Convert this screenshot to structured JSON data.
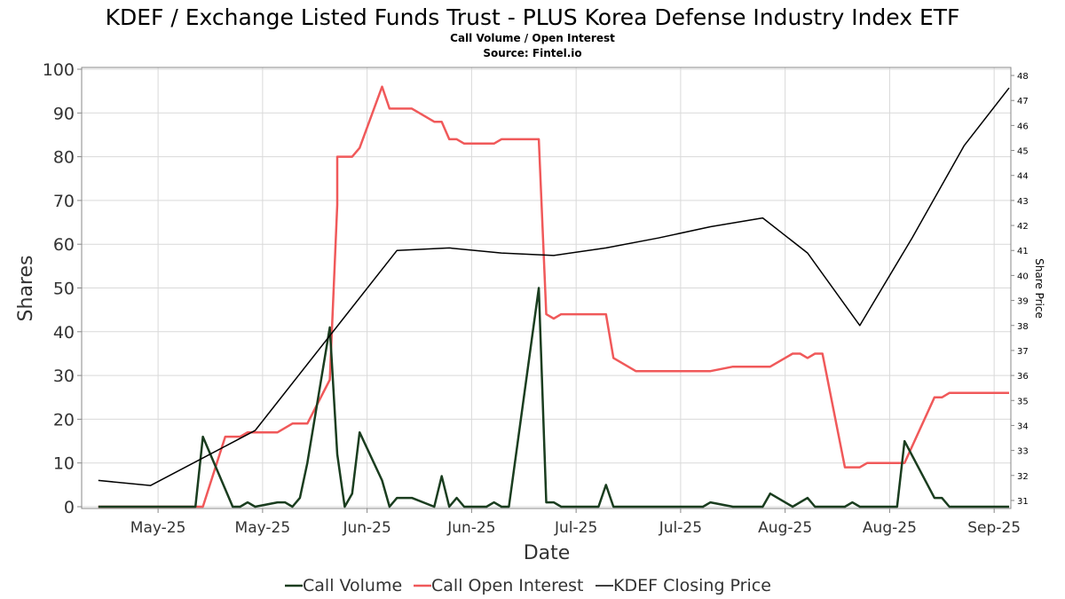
{
  "chart_data": {
    "type": "line",
    "title": "KDEF / Exchange Listed Funds Trust - PLUS Korea Defense Industry Index ETF",
    "subtitle_lines": [
      "Call Volume / Open Interest",
      "Source: Fintel.io"
    ],
    "xlabel": "Date",
    "ylabel": "Shares",
    "y2label": "Share Price",
    "ylim": [
      0,
      100
    ],
    "y_ticks": [
      0,
      10,
      20,
      30,
      40,
      50,
      60,
      70,
      80,
      90,
      100
    ],
    "y2lim": [
      30.75,
      48.25
    ],
    "y2_ticks": [
      31,
      32,
      33,
      34,
      35,
      36,
      37,
      38,
      39,
      40,
      41,
      42,
      43,
      44,
      45,
      46,
      47,
      48
    ],
    "xlim": [
      "2025-05-02",
      "2025-09-03"
    ],
    "x_ticks": [
      {
        "date": "2025-05-12",
        "label": "May-25"
      },
      {
        "date": "2025-05-26",
        "label": "May-25"
      },
      {
        "date": "2025-06-09",
        "label": "Jun-25"
      },
      {
        "date": "2025-06-23",
        "label": "Jun-25"
      },
      {
        "date": "2025-07-07",
        "label": "Jul-25"
      },
      {
        "date": "2025-07-21",
        "label": "Jul-25"
      },
      {
        "date": "2025-08-04",
        "label": "Aug-25"
      },
      {
        "date": "2025-08-18",
        "label": "Aug-25"
      },
      {
        "date": "2025-09-01",
        "label": "Sep-25"
      }
    ],
    "grid": true,
    "legend": "bottom-center",
    "series": [
      {
        "name": "Call Volume",
        "color": "#1a3d1f",
        "axis": "left",
        "points": [
          [
            "2025-05-04",
            0
          ],
          [
            "2025-05-09",
            0
          ],
          [
            "2025-05-14",
            0
          ],
          [
            "2025-05-17",
            0
          ],
          [
            "2025-05-18",
            16
          ],
          [
            "2025-05-22",
            0
          ],
          [
            "2025-05-23",
            0
          ],
          [
            "2025-05-24",
            1
          ],
          [
            "2025-05-25",
            0
          ],
          [
            "2025-05-28",
            1
          ],
          [
            "2025-05-29",
            1
          ],
          [
            "2025-05-30",
            0
          ],
          [
            "2025-05-31",
            2
          ],
          [
            "2025-06-01",
            10
          ],
          [
            "2025-06-04",
            41
          ],
          [
            "2025-06-05",
            12
          ],
          [
            "2025-06-06",
            0
          ],
          [
            "2025-06-07",
            3
          ],
          [
            "2025-06-08",
            17
          ],
          [
            "2025-06-11",
            6
          ],
          [
            "2025-06-12",
            0
          ],
          [
            "2025-06-13",
            2
          ],
          [
            "2025-06-15",
            2
          ],
          [
            "2025-06-18",
            0
          ],
          [
            "2025-06-19",
            7
          ],
          [
            "2025-06-20",
            0
          ],
          [
            "2025-06-21",
            2
          ],
          [
            "2025-06-22",
            0
          ],
          [
            "2025-06-25",
            0
          ],
          [
            "2025-06-26",
            1
          ],
          [
            "2025-06-27",
            0
          ],
          [
            "2025-06-28",
            0
          ],
          [
            "2025-07-02",
            50
          ],
          [
            "2025-07-03",
            1
          ],
          [
            "2025-07-04",
            1
          ],
          [
            "2025-07-05",
            0
          ],
          [
            "2025-07-10",
            0
          ],
          [
            "2025-07-11",
            5
          ],
          [
            "2025-07-12",
            0
          ],
          [
            "2025-07-18",
            0
          ],
          [
            "2025-07-24",
            0
          ],
          [
            "2025-07-25",
            1
          ],
          [
            "2025-07-28",
            0
          ],
          [
            "2025-08-01",
            0
          ],
          [
            "2025-08-02",
            3
          ],
          [
            "2025-08-05",
            0
          ],
          [
            "2025-08-07",
            2
          ],
          [
            "2025-08-08",
            0
          ],
          [
            "2025-08-12",
            0
          ],
          [
            "2025-08-13",
            1
          ],
          [
            "2025-08-14",
            0
          ],
          [
            "2025-08-19",
            0
          ],
          [
            "2025-08-20",
            15
          ],
          [
            "2025-08-24",
            2
          ],
          [
            "2025-08-25",
            2
          ],
          [
            "2025-08-26",
            0
          ],
          [
            "2025-08-29",
            0
          ],
          [
            "2025-09-03",
            0
          ]
        ]
      },
      {
        "name": "Call Open Interest",
        "color": "#f0595a",
        "axis": "left",
        "points": [
          [
            "2025-05-04",
            0
          ],
          [
            "2025-05-09",
            0
          ],
          [
            "2025-05-14",
            0
          ],
          [
            "2025-05-18",
            0
          ],
          [
            "2025-05-21",
            16
          ],
          [
            "2025-05-22",
            16
          ],
          [
            "2025-05-23",
            16
          ],
          [
            "2025-05-24",
            17
          ],
          [
            "2025-05-25",
            17
          ],
          [
            "2025-05-28",
            17
          ],
          [
            "2025-05-30",
            19
          ],
          [
            "2025-05-31",
            19
          ],
          [
            "2025-06-01",
            19
          ],
          [
            "2025-06-04",
            29
          ],
          [
            "2025-06-05",
            69
          ],
          [
            "2025-06-05",
            80
          ],
          [
            "2025-06-06",
            80
          ],
          [
            "2025-06-07",
            80
          ],
          [
            "2025-06-08",
            82
          ],
          [
            "2025-06-11",
            96
          ],
          [
            "2025-06-12",
            91
          ],
          [
            "2025-06-13",
            91
          ],
          [
            "2025-06-15",
            91
          ],
          [
            "2025-06-18",
            88
          ],
          [
            "2025-06-19",
            88
          ],
          [
            "2025-06-20",
            84
          ],
          [
            "2025-06-21",
            84
          ],
          [
            "2025-06-22",
            83
          ],
          [
            "2025-06-26",
            83
          ],
          [
            "2025-06-27",
            84
          ],
          [
            "2025-06-28",
            84
          ],
          [
            "2025-07-02",
            84
          ],
          [
            "2025-07-03",
            44
          ],
          [
            "2025-07-04",
            43
          ],
          [
            "2025-07-05",
            44
          ],
          [
            "2025-07-11",
            44
          ],
          [
            "2025-07-12",
            34
          ],
          [
            "2025-07-15",
            31
          ],
          [
            "2025-07-18",
            31
          ],
          [
            "2025-07-25",
            31
          ],
          [
            "2025-07-28",
            32
          ],
          [
            "2025-08-02",
            32
          ],
          [
            "2025-08-05",
            35
          ],
          [
            "2025-08-06",
            35
          ],
          [
            "2025-08-07",
            34
          ],
          [
            "2025-08-08",
            35
          ],
          [
            "2025-08-09",
            35
          ],
          [
            "2025-08-12",
            9
          ],
          [
            "2025-08-14",
            9
          ],
          [
            "2025-08-15",
            10
          ],
          [
            "2025-08-20",
            10
          ],
          [
            "2025-08-24",
            25
          ],
          [
            "2025-08-25",
            25
          ],
          [
            "2025-08-26",
            26
          ],
          [
            "2025-09-03",
            26
          ]
        ]
      },
      {
        "name": "KDEF Closing Price",
        "color": "#000000",
        "axis": "right",
        "points": [
          [
            "2025-05-04",
            31.8
          ],
          [
            "2025-05-11",
            31.6
          ],
          [
            "2025-05-25",
            33.8
          ],
          [
            "2025-06-13",
            41.0
          ],
          [
            "2025-06-20",
            41.1
          ],
          [
            "2025-06-27",
            40.9
          ],
          [
            "2025-07-04",
            40.8
          ],
          [
            "2025-07-11",
            41.1
          ],
          [
            "2025-07-18",
            41.5
          ],
          [
            "2025-07-25",
            41.95
          ],
          [
            "2025-08-01",
            42.3
          ],
          [
            "2025-08-07",
            40.9
          ],
          [
            "2025-08-14",
            38.0
          ],
          [
            "2025-08-21",
            41.5
          ],
          [
            "2025-08-28",
            45.2
          ],
          [
            "2025-09-03",
            47.5
          ]
        ]
      }
    ]
  }
}
